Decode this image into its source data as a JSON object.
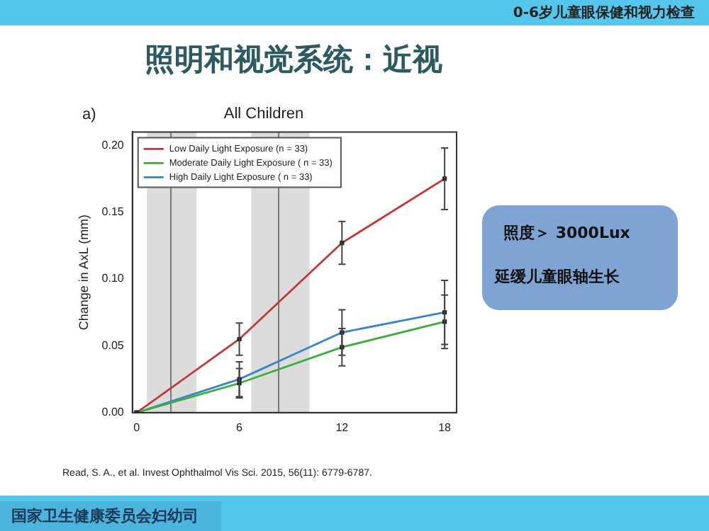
{
  "chart_data": {
    "type": "line",
    "title": "All Children",
    "ylabel": "Change in AxL (mm)",
    "annotations": [
      "0-6岁儿童眼保健和视力检查",
      "照明和视觉系统：近视",
      "照度＞ 3000Lux",
      "延缓儿童眼轴生长",
      "Read, S. A., et al. Invest Ophthalmol Vis Sci. 2015, 56(11): 6779-6787.",
      "国家卫生健康委员会妇幼司",
      "a)"
    ],
    "x": [
      0,
      6,
      12,
      18
    ],
    "series": [
      {
        "name": "Low Daily Light Exposure (n = 33)",
        "color": "#c0393b",
        "values": [
          0,
          0.055,
          0.127,
          0.175
        ],
        "errors": [
          null,
          0.012,
          0.016,
          0.023
        ]
      },
      {
        "name": "Moderate Daily Light Exposure ( n = 33)",
        "color": "#3cae3c",
        "values": [
          0,
          0.022,
          0.049,
          0.068
        ],
        "errors": [
          null,
          0.011,
          0.014,
          0.02
        ]
      },
      {
        "name": "High Daily Light Exposure ( n = 33)",
        "color": "#3a85c8",
        "values": [
          0,
          0.025,
          0.06,
          0.075
        ],
        "errors": [
          null,
          0.013,
          0.017,
          0.024
        ]
      }
    ],
    "xlim": [
      -0.25,
      18.7
    ],
    "xticks": [
      0,
      6,
      12,
      18
    ],
    "ylim": [
      0,
      0.21
    ],
    "yticks": [
      {
        "value": 0,
        "label": "0.00"
      },
      {
        "value": 0.05,
        "label": "0.05"
      },
      {
        "value": 0.1,
        "label": "0.10"
      },
      {
        "value": 0.15,
        "label": "0.15"
      },
      {
        "value": 0.2,
        "label": "0.20"
      }
    ],
    "bands": [
      {
        "axis": "x",
        "from": 0.6,
        "to": 3.5,
        "color": "#dcdcdc"
      },
      {
        "axis": "x",
        "from": 6.7,
        "to": 10.1,
        "color": "#dcdcdc"
      }
    ],
    "ref_lines": [
      {
        "axis": "x",
        "value": 2,
        "color": "#777777"
      },
      {
        "axis": "x",
        "value": 8.3,
        "color": "#777777"
      }
    ],
    "grid": false,
    "legend": "top left",
    "marker": "square",
    "line_style": "solid"
  }
}
